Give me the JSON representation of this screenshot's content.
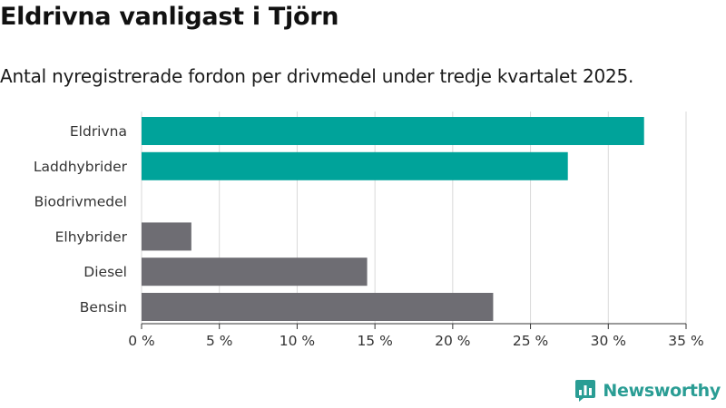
{
  "colors": {
    "highlight": "#00a39a",
    "other": "#6e6d73",
    "grid": "#d9d9d9",
    "brand": "#2a9d94"
  },
  "brand": {
    "name": "Newsworthy",
    "icon": "newsworthy-logo-icon"
  },
  "chart_data": {
    "type": "bar",
    "orientation": "horizontal",
    "title": "Eldrivna vanligast i Tjörn",
    "subtitle": "Antal nyregistrerade fordon per drivmedel under tredje kvartalet 2025.",
    "categories": [
      "Eldrivna",
      "Laddhybrider",
      "Biodrivmedel",
      "Elhybrider",
      "Diesel",
      "Bensin"
    ],
    "values": [
      32.3,
      27.4,
      0,
      3.2,
      14.5,
      22.6
    ],
    "highlighted": [
      true,
      true,
      true,
      false,
      false,
      false
    ],
    "unit": "%",
    "xlim": [
      0,
      35
    ],
    "xticks": [
      0,
      5,
      10,
      15,
      20,
      25,
      30,
      35
    ],
    "xtick_labels": [
      "0 %",
      "5 %",
      "10 %",
      "15 %",
      "20 %",
      "25 %",
      "30 %",
      "35 %"
    ],
    "grid": true,
    "xlabel": "",
    "ylabel": ""
  }
}
